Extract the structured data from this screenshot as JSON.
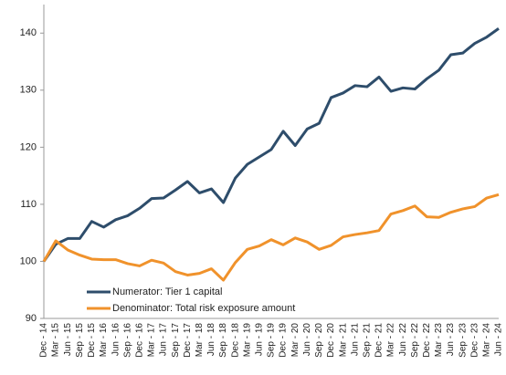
{
  "chart_data": {
    "type": "line",
    "categories": [
      "Dec - 14",
      "Mar - 15",
      "Jun - 15",
      "Sep - 15",
      "Dec - 15",
      "Mar - 16",
      "Jun - 16",
      "Sep - 16",
      "Dec - 16",
      "Mar - 17",
      "Jun - 17",
      "Sep - 17",
      "Dec - 17",
      "Mar - 18",
      "Jun - 18",
      "Sep - 18",
      "Dec - 18",
      "Mar - 19",
      "Jun - 19",
      "Sep - 19",
      "Dec - 19",
      "Mar - 20",
      "Jun - 20",
      "Sep - 20",
      "Dec - 20",
      "Mar - 21",
      "Jun - 21",
      "Sep - 21",
      "Dec - 21",
      "Mar - 22",
      "Jun - 22",
      "Sep - 22",
      "Dec - 22",
      "Mar - 23",
      "Jun - 23",
      "Sep - 23",
      "Dec - 23",
      "Mar - 24",
      "Jun - 24"
    ],
    "series": [
      {
        "name": "Numerator: Tier 1 capital",
        "color": "#2e4d6b",
        "values": [
          100,
          103,
          104,
          104,
          107,
          106,
          107.3,
          108,
          109.3,
          111,
          111.1,
          112.5,
          114,
          112,
          112.7,
          110.3,
          114.6,
          117,
          118.3,
          119.6,
          122.8,
          120.3,
          123.2,
          124.2,
          128.7,
          129.5,
          130.8,
          130.6,
          132.3,
          129.8,
          130.4,
          130.2,
          132,
          133.5,
          136.2,
          136.5,
          138.2,
          139.3,
          140.8
        ]
      },
      {
        "name": "Denominator: Total risk exposure amount",
        "color": "#f0922b",
        "values": [
          100,
          103.6,
          102,
          101.1,
          100.4,
          100.3,
          100.3,
          99.6,
          99.2,
          100.2,
          99.7,
          98.2,
          97.6,
          97.9,
          98.7,
          96.7,
          99.8,
          102.1,
          102.7,
          103.8,
          102.9,
          104.1,
          103.4,
          102.1,
          102.8,
          104.3,
          104.7,
          105.0,
          105.4,
          108.3,
          108.9,
          109.7,
          107.8,
          107.7,
          108.6,
          109.2,
          109.6,
          111.1,
          111.7
        ]
      }
    ],
    "ylim": [
      90,
      145
    ],
    "yticks": [
      90,
      100,
      110,
      120,
      130,
      140
    ],
    "grid": false,
    "legend": "lower-left"
  }
}
